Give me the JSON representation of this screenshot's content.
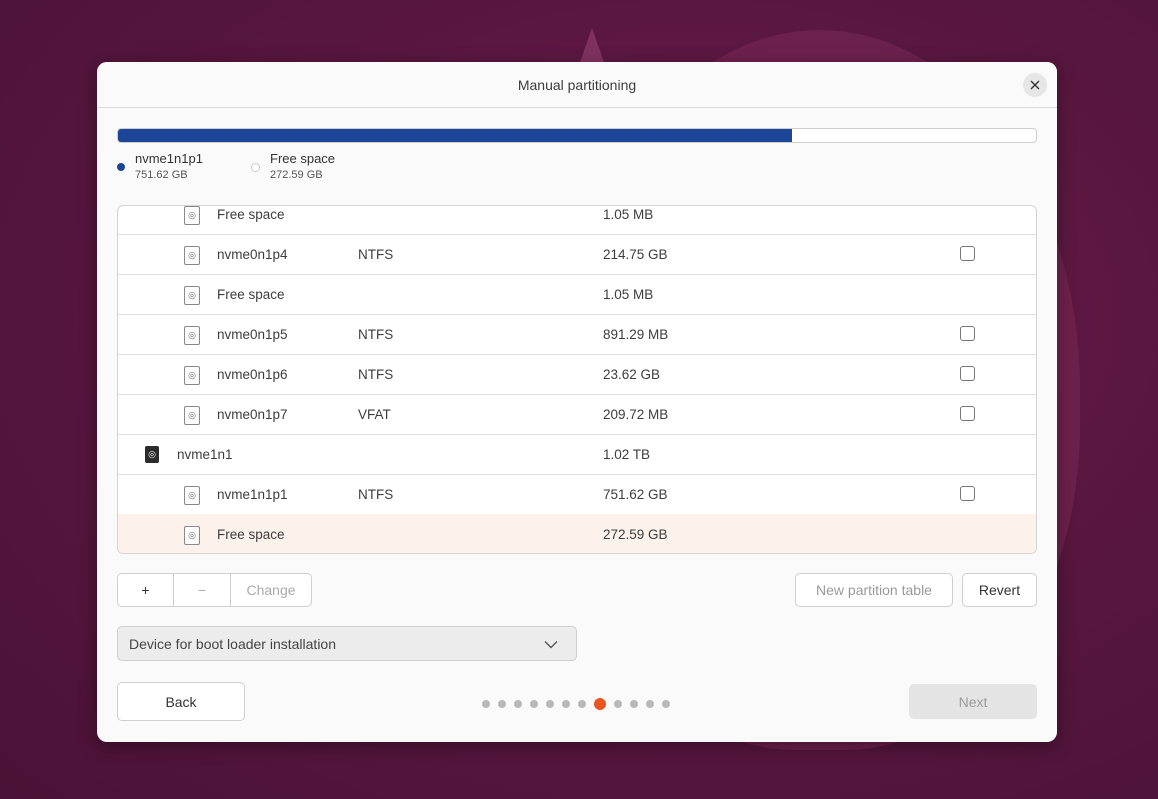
{
  "dialog": {
    "title": "Manual partitioning"
  },
  "usage": {
    "fill_fraction": 0.734,
    "legend": [
      {
        "name": "nvme1n1p1",
        "size": "751.62 GB",
        "color": "#1c4598"
      },
      {
        "name": "Free space",
        "size": "272.59 GB",
        "color": "#ffffff"
      }
    ]
  },
  "table": {
    "rows": [
      {
        "kind": "partition",
        "name": "Free space",
        "type": "",
        "size": "1.05 MB",
        "checkbox": false,
        "selected": false
      },
      {
        "kind": "partition",
        "name": "nvme0n1p4",
        "type": "NTFS",
        "size": "214.75 GB",
        "checkbox": true,
        "selected": false
      },
      {
        "kind": "partition",
        "name": "Free space",
        "type": "",
        "size": "1.05 MB",
        "checkbox": false,
        "selected": false
      },
      {
        "kind": "partition",
        "name": "nvme0n1p5",
        "type": "NTFS",
        "size": "891.29 MB",
        "checkbox": true,
        "selected": false
      },
      {
        "kind": "partition",
        "name": "nvme0n1p6",
        "type": "NTFS",
        "size": "23.62 GB",
        "checkbox": true,
        "selected": false
      },
      {
        "kind": "partition",
        "name": "nvme0n1p7",
        "type": "VFAT",
        "size": "209.72 MB",
        "checkbox": true,
        "selected": false
      },
      {
        "kind": "disk",
        "name": "nvme1n1",
        "type": "",
        "size": "1.02 TB",
        "checkbox": false,
        "selected": false
      },
      {
        "kind": "partition",
        "name": "nvme1n1p1",
        "type": "NTFS",
        "size": "751.62 GB",
        "checkbox": true,
        "selected": false
      },
      {
        "kind": "partition",
        "name": "Free space",
        "type": "",
        "size": "272.59 GB",
        "checkbox": false,
        "selected": true
      }
    ]
  },
  "actions": {
    "add_label": "+",
    "remove_label": "−",
    "change_label": "Change",
    "new_table_label": "New partition table",
    "revert_label": "Revert"
  },
  "bootloader": {
    "label": "Device for boot loader installation"
  },
  "nav": {
    "back_label": "Back",
    "next_label": "Next",
    "step_total": 12,
    "step_current": 8
  },
  "colors": {
    "accent": "#e95420",
    "bar": "#1c4598",
    "selected_row": "#fdf1ec"
  }
}
